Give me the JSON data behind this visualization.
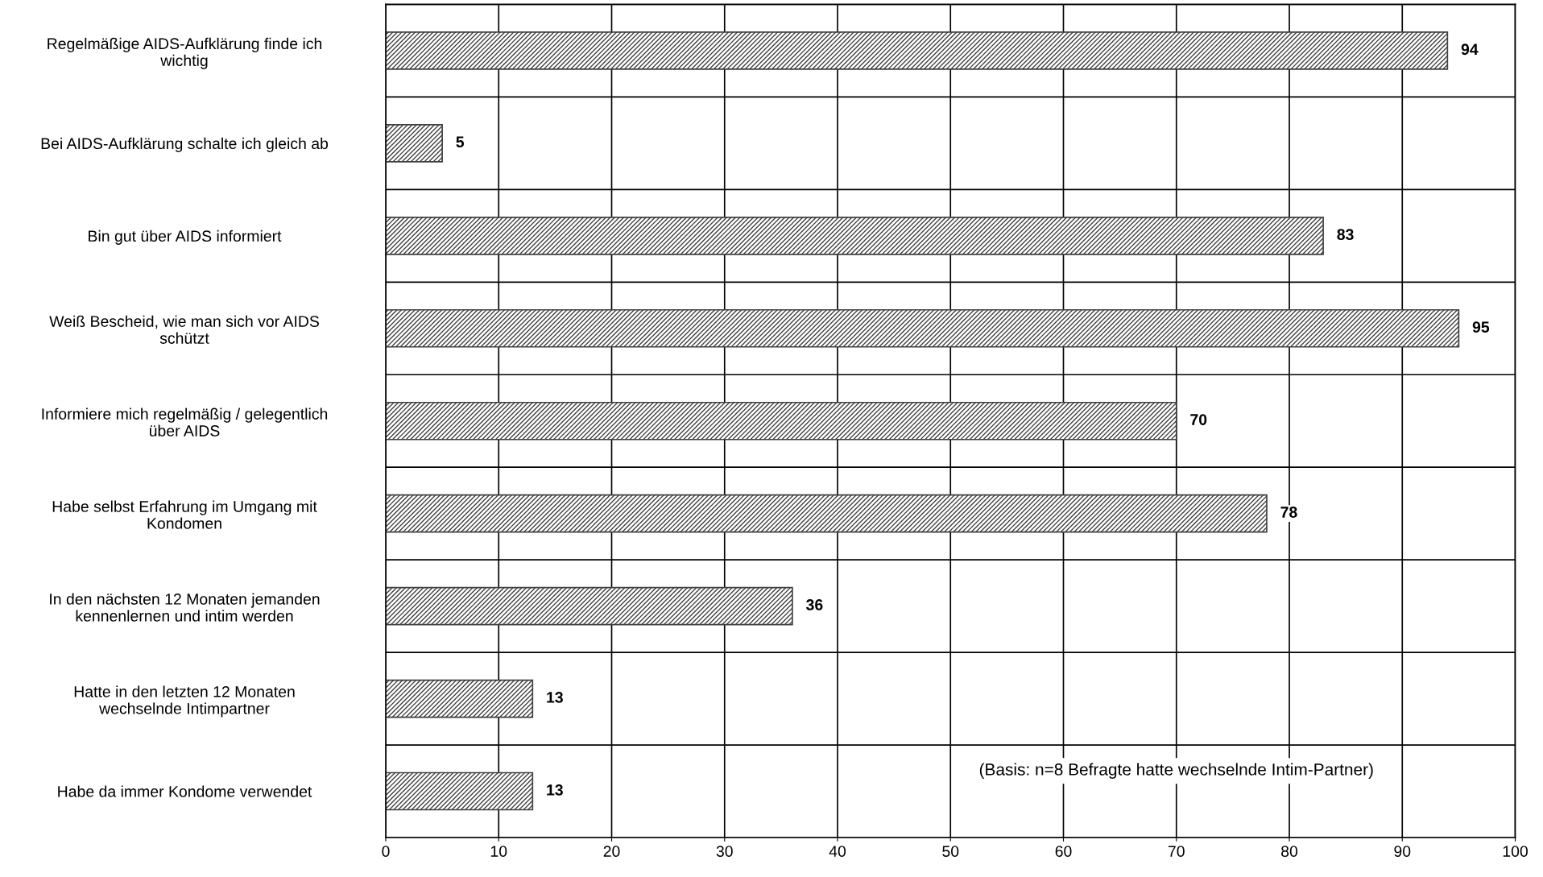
{
  "chart_data": {
    "type": "bar",
    "orientation": "horizontal",
    "categories": [
      "Regelmäßige AIDS-Aufklärung finde ich\nwichtig",
      "Bei AIDS-Aufklärung schalte ich gleich ab",
      "Bin gut über AIDS informiert",
      "Weiß Bescheid, wie man sich vor AIDS\nschützt",
      "Informiere mich regelmäßig / gelegentlich\nüber AIDS",
      "Habe selbst Erfahrung im Umgang mit\nKondomen",
      "In den nächsten 12 Monaten jemanden\nkennenlernen und intim werden",
      "Hatte in den letzten 12 Monaten\nwechselnde Intimpartner",
      "Habe da immer Kondome verwendet"
    ],
    "values": [
      94,
      5,
      83,
      95,
      70,
      78,
      36,
      13,
      13
    ],
    "color": "#404040",
    "xlim": [
      0,
      100
    ],
    "xticks": [
      0,
      10,
      20,
      30,
      40,
      50,
      60,
      70,
      80,
      90,
      100
    ],
    "grid": true,
    "data_labels": true,
    "annotations": [
      "(Basis: n=8 Befragte hatte wechselnde Intim-Partner)"
    ]
  }
}
